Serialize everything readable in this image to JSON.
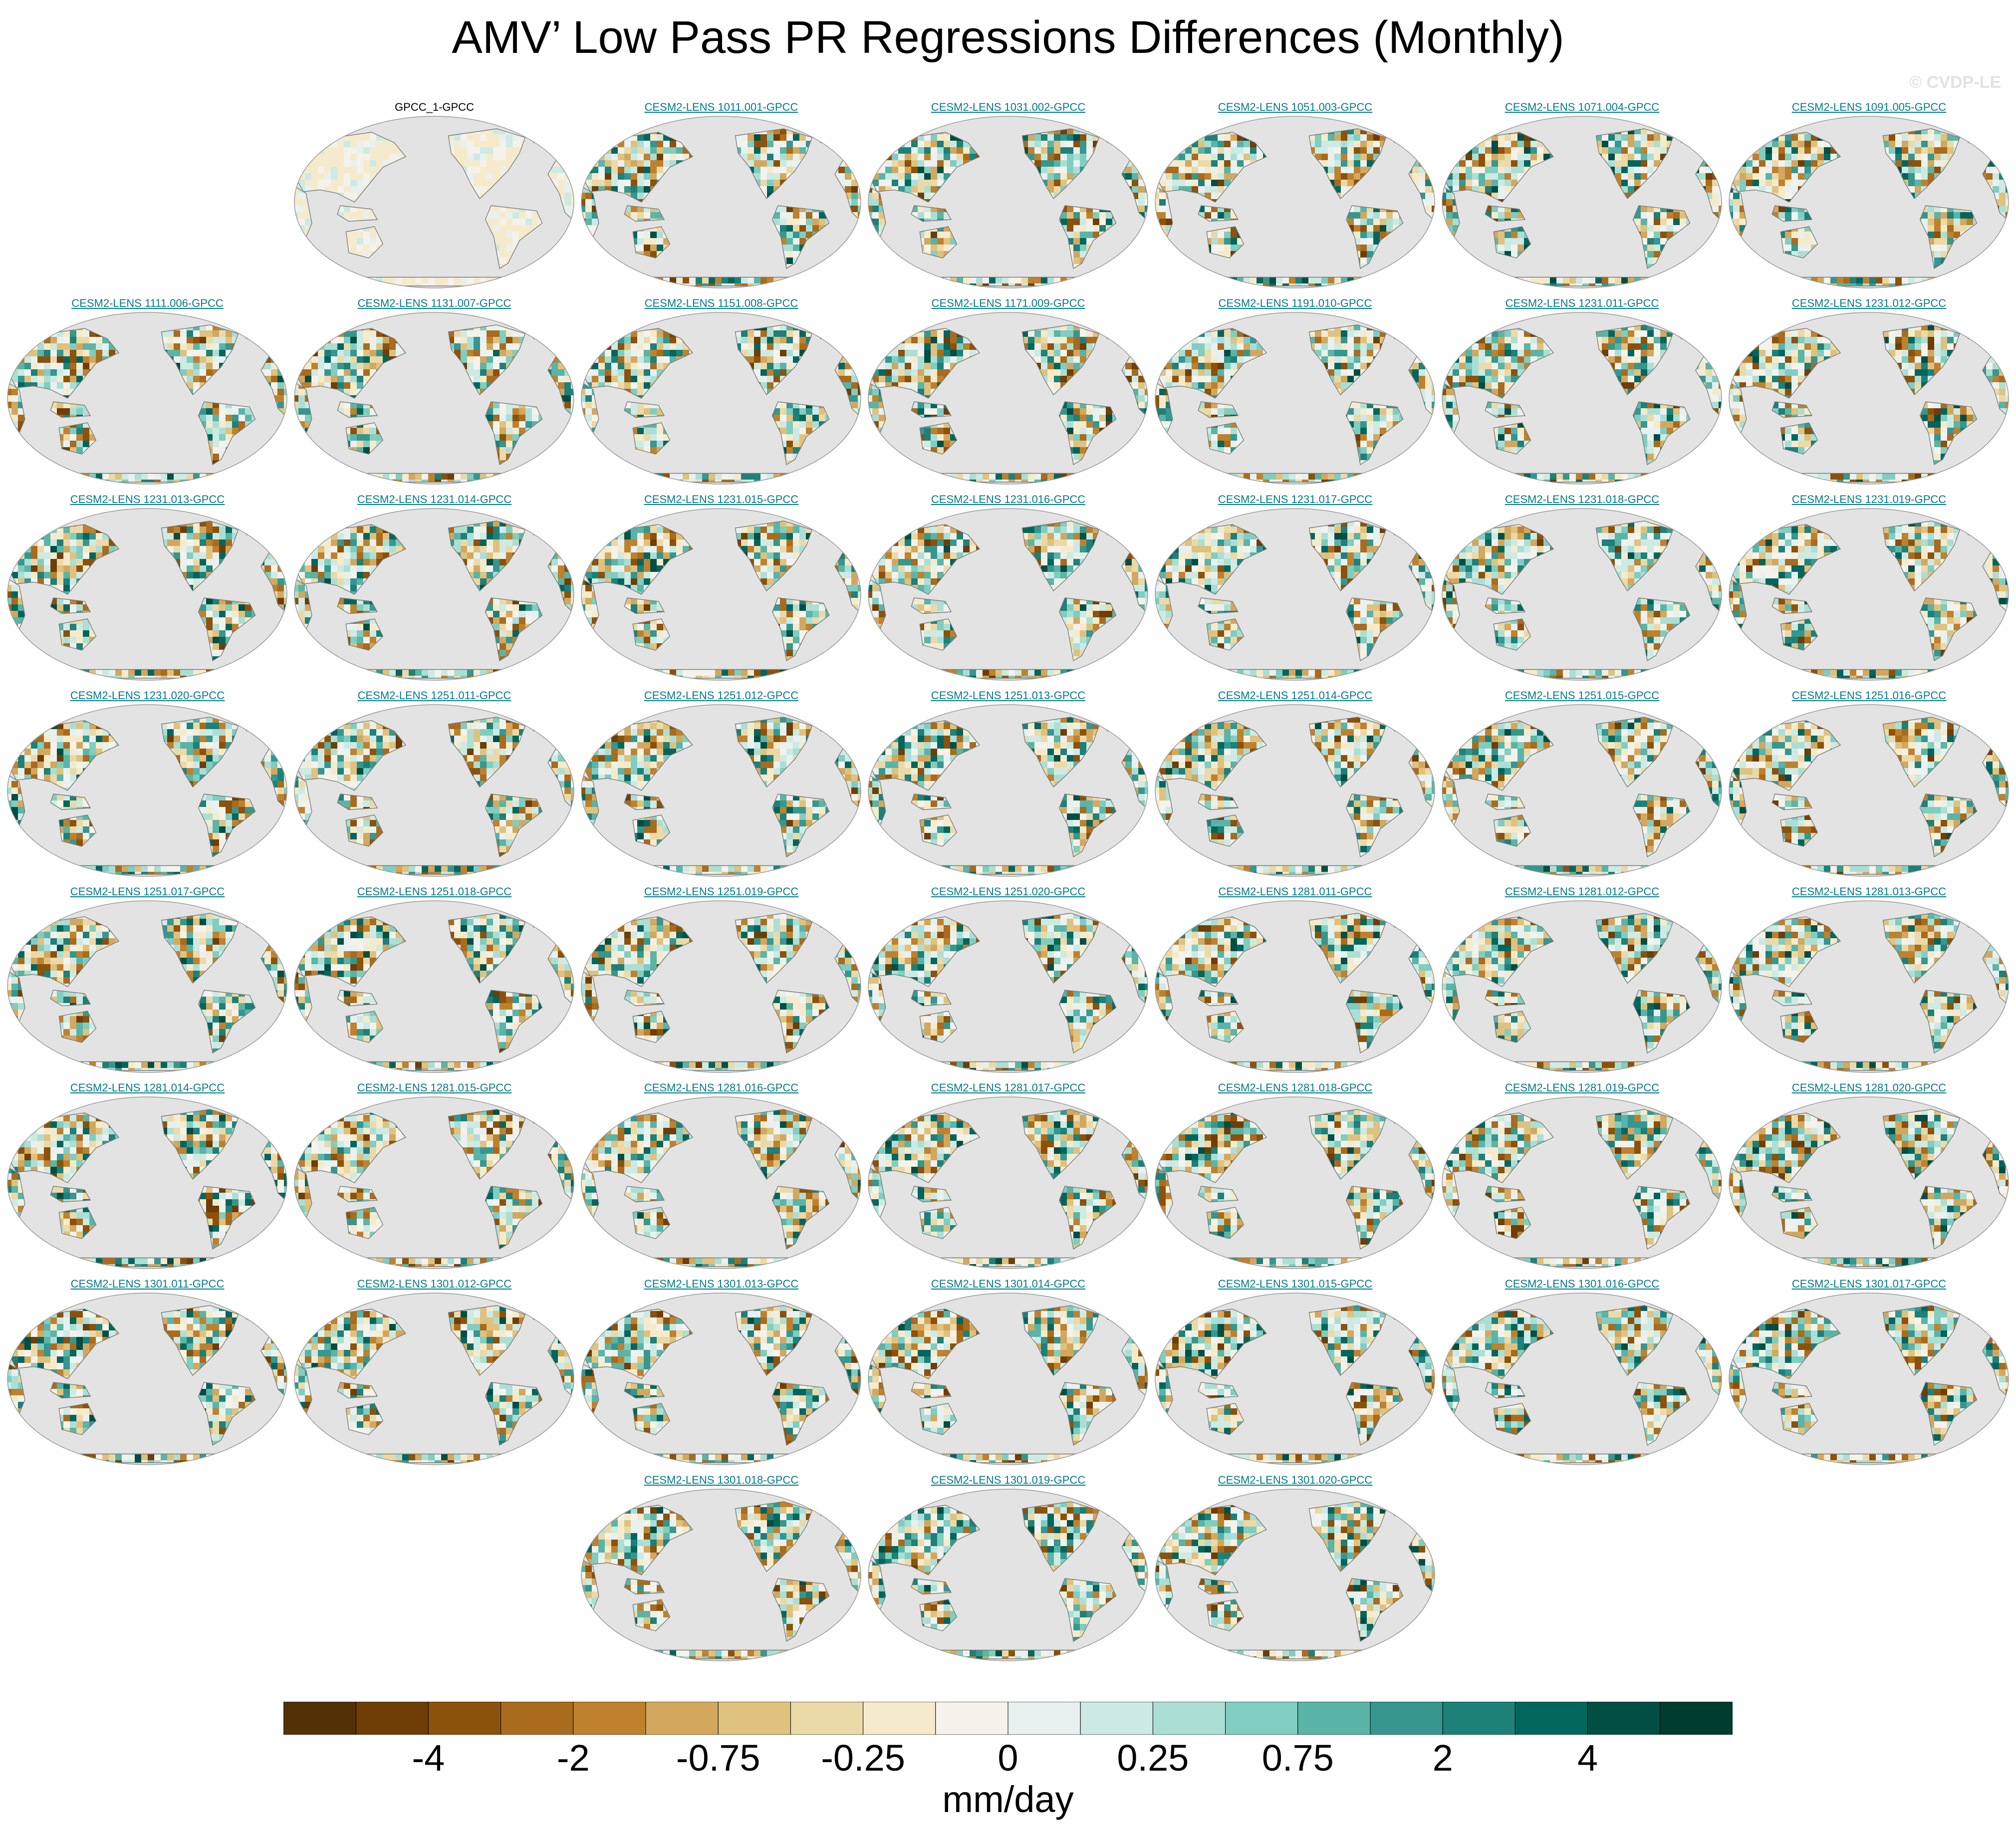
{
  "title": "AMV’ Low Pass PR Regressions Differences (Monthly)",
  "watermark": "© CVDP-LE",
  "colorbar": {
    "units": "mm/day",
    "tick_labels": [
      "-4",
      "-2",
      "-0.75",
      "-0.25",
      "0",
      "0.25",
      "0.75",
      "2",
      "4"
    ],
    "levels": [
      -5,
      -4,
      -3,
      -2,
      -1,
      -0.75,
      -0.5,
      -0.25,
      -0.1,
      0,
      0.1,
      0.25,
      0.5,
      0.75,
      1,
      2,
      3,
      4,
      5
    ],
    "colors": [
      "#543005",
      "#6f3d06",
      "#8c510a",
      "#a96b1d",
      "#bf812d",
      "#d3a85e",
      "#dfc27d",
      "#ecd9a8",
      "#f5ebcc",
      "#f5f2ec",
      "#e8f1ef",
      "#cdeae4",
      "#abdfd6",
      "#80cdc1",
      "#5ab4a7",
      "#35978f",
      "#1d8079",
      "#01665e",
      "#014e44",
      "#003c30"
    ]
  },
  "chart_data": {
    "type": "map-panel-grid",
    "variable": "PR regression difference (AMV low pass, monthly)",
    "units": "mm/day",
    "projection": "Robinson, Pacific-centered",
    "panels": [
      {
        "label": "GPCC_1-GPCC",
        "kind": "observation"
      },
      {
        "label": "CESM2-LENS 1011.001-GPCC",
        "kind": "model"
      },
      {
        "label": "CESM2-LENS 1031.002-GPCC",
        "kind": "model"
      },
      {
        "label": "CESM2-LENS 1051.003-GPCC",
        "kind": "model"
      },
      {
        "label": "CESM2-LENS 1071.004-GPCC",
        "kind": "model"
      },
      {
        "label": "CESM2-LENS 1091.005-GPCC",
        "kind": "model"
      },
      {
        "label": "CESM2-LENS 1111.006-GPCC",
        "kind": "model"
      },
      {
        "label": "CESM2-LENS 1131.007-GPCC",
        "kind": "model"
      },
      {
        "label": "CESM2-LENS 1151.008-GPCC",
        "kind": "model"
      },
      {
        "label": "CESM2-LENS 1171.009-GPCC",
        "kind": "model"
      },
      {
        "label": "CESM2-LENS 1191.010-GPCC",
        "kind": "model"
      },
      {
        "label": "CESM2-LENS 1231.011-GPCC",
        "kind": "model"
      },
      {
        "label": "CESM2-LENS 1231.012-GPCC",
        "kind": "model"
      },
      {
        "label": "CESM2-LENS 1231.013-GPCC",
        "kind": "model"
      },
      {
        "label": "CESM2-LENS 1231.014-GPCC",
        "kind": "model"
      },
      {
        "label": "CESM2-LENS 1231.015-GPCC",
        "kind": "model"
      },
      {
        "label": "CESM2-LENS 1231.016-GPCC",
        "kind": "model"
      },
      {
        "label": "CESM2-LENS 1231.017-GPCC",
        "kind": "model"
      },
      {
        "label": "CESM2-LENS 1231.018-GPCC",
        "kind": "model"
      },
      {
        "label": "CESM2-LENS 1231.019-GPCC",
        "kind": "model"
      },
      {
        "label": "CESM2-LENS 1231.020-GPCC",
        "kind": "model"
      },
      {
        "label": "CESM2-LENS 1251.011-GPCC",
        "kind": "model"
      },
      {
        "label": "CESM2-LENS 1251.012-GPCC",
        "kind": "model"
      },
      {
        "label": "CESM2-LENS 1251.013-GPCC",
        "kind": "model"
      },
      {
        "label": "CESM2-LENS 1251.014-GPCC",
        "kind": "model"
      },
      {
        "label": "CESM2-LENS 1251.015-GPCC",
        "kind": "model"
      },
      {
        "label": "CESM2-LENS 1251.016-GPCC",
        "kind": "model"
      },
      {
        "label": "CESM2-LENS 1251.017-GPCC",
        "kind": "model"
      },
      {
        "label": "CESM2-LENS 1251.018-GPCC",
        "kind": "model"
      },
      {
        "label": "CESM2-LENS 1251.019-GPCC",
        "kind": "model"
      },
      {
        "label": "CESM2-LENS 1251.020-GPCC",
        "kind": "model"
      },
      {
        "label": "CESM2-LENS 1281.011-GPCC",
        "kind": "model"
      },
      {
        "label": "CESM2-LENS 1281.012-GPCC",
        "kind": "model"
      },
      {
        "label": "CESM2-LENS 1281.013-GPCC",
        "kind": "model"
      },
      {
        "label": "CESM2-LENS 1281.014-GPCC",
        "kind": "model"
      },
      {
        "label": "CESM2-LENS 1281.015-GPCC",
        "kind": "model"
      },
      {
        "label": "CESM2-LENS 1281.016-GPCC",
        "kind": "model"
      },
      {
        "label": "CESM2-LENS 1281.017-GPCC",
        "kind": "model"
      },
      {
        "label": "CESM2-LENS 1281.018-GPCC",
        "kind": "model"
      },
      {
        "label": "CESM2-LENS 1281.019-GPCC",
        "kind": "model"
      },
      {
        "label": "CESM2-LENS 1281.020-GPCC",
        "kind": "model"
      },
      {
        "label": "CESM2-LENS 1301.011-GPCC",
        "kind": "model"
      },
      {
        "label": "CESM2-LENS 1301.012-GPCC",
        "kind": "model"
      },
      {
        "label": "CESM2-LENS 1301.013-GPCC",
        "kind": "model"
      },
      {
        "label": "CESM2-LENS 1301.014-GPCC",
        "kind": "model"
      },
      {
        "label": "CESM2-LENS 1301.015-GPCC",
        "kind": "model"
      },
      {
        "label": "CESM2-LENS 1301.016-GPCC",
        "kind": "model"
      },
      {
        "label": "CESM2-LENS 1301.017-GPCC",
        "kind": "model"
      },
      {
        "label": "CESM2-LENS 1301.018-GPCC",
        "kind": "model"
      },
      {
        "label": "CESM2-LENS 1301.019-GPCC",
        "kind": "model"
      },
      {
        "label": "CESM2-LENS 1301.020-GPCC",
        "kind": "model"
      }
    ]
  }
}
